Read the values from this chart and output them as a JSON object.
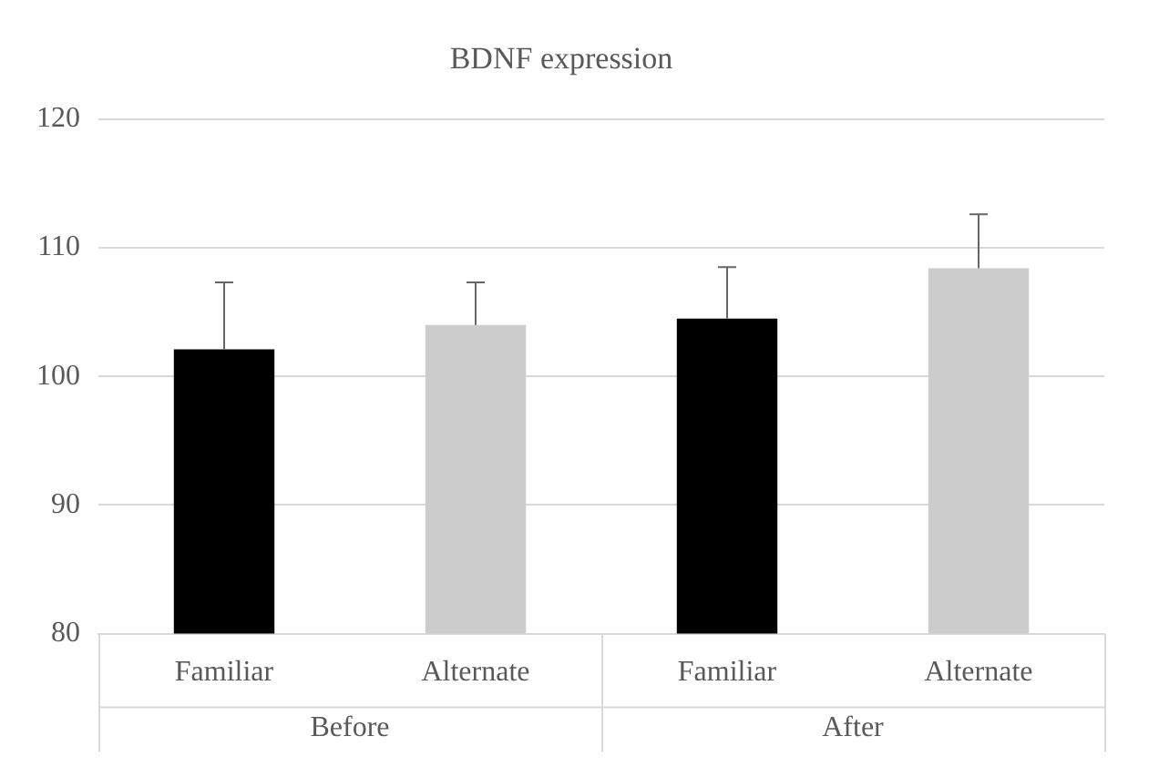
{
  "chart_data": {
    "type": "bar",
    "title": "BDNF expression",
    "categories": [
      "Familiar",
      "Alternate",
      "Familiar",
      "Alternate"
    ],
    "values": [
      102.1,
      104.0,
      104.5,
      108.4
    ],
    "colors": [
      "#000000",
      "#cccccc",
      "#000000",
      "#cccccc"
    ],
    "errors": [
      [
        102.1,
        107.3
      ],
      [
        104.0,
        107.3
      ],
      [
        104.5,
        108.5
      ],
      [
        108.4,
        112.6
      ]
    ],
    "ylim": [
      80,
      120
    ],
    "yticks": [
      80,
      90,
      100,
      110,
      120
    ],
    "grid": "y",
    "annotations": [
      "Before",
      "After"
    ]
  }
}
